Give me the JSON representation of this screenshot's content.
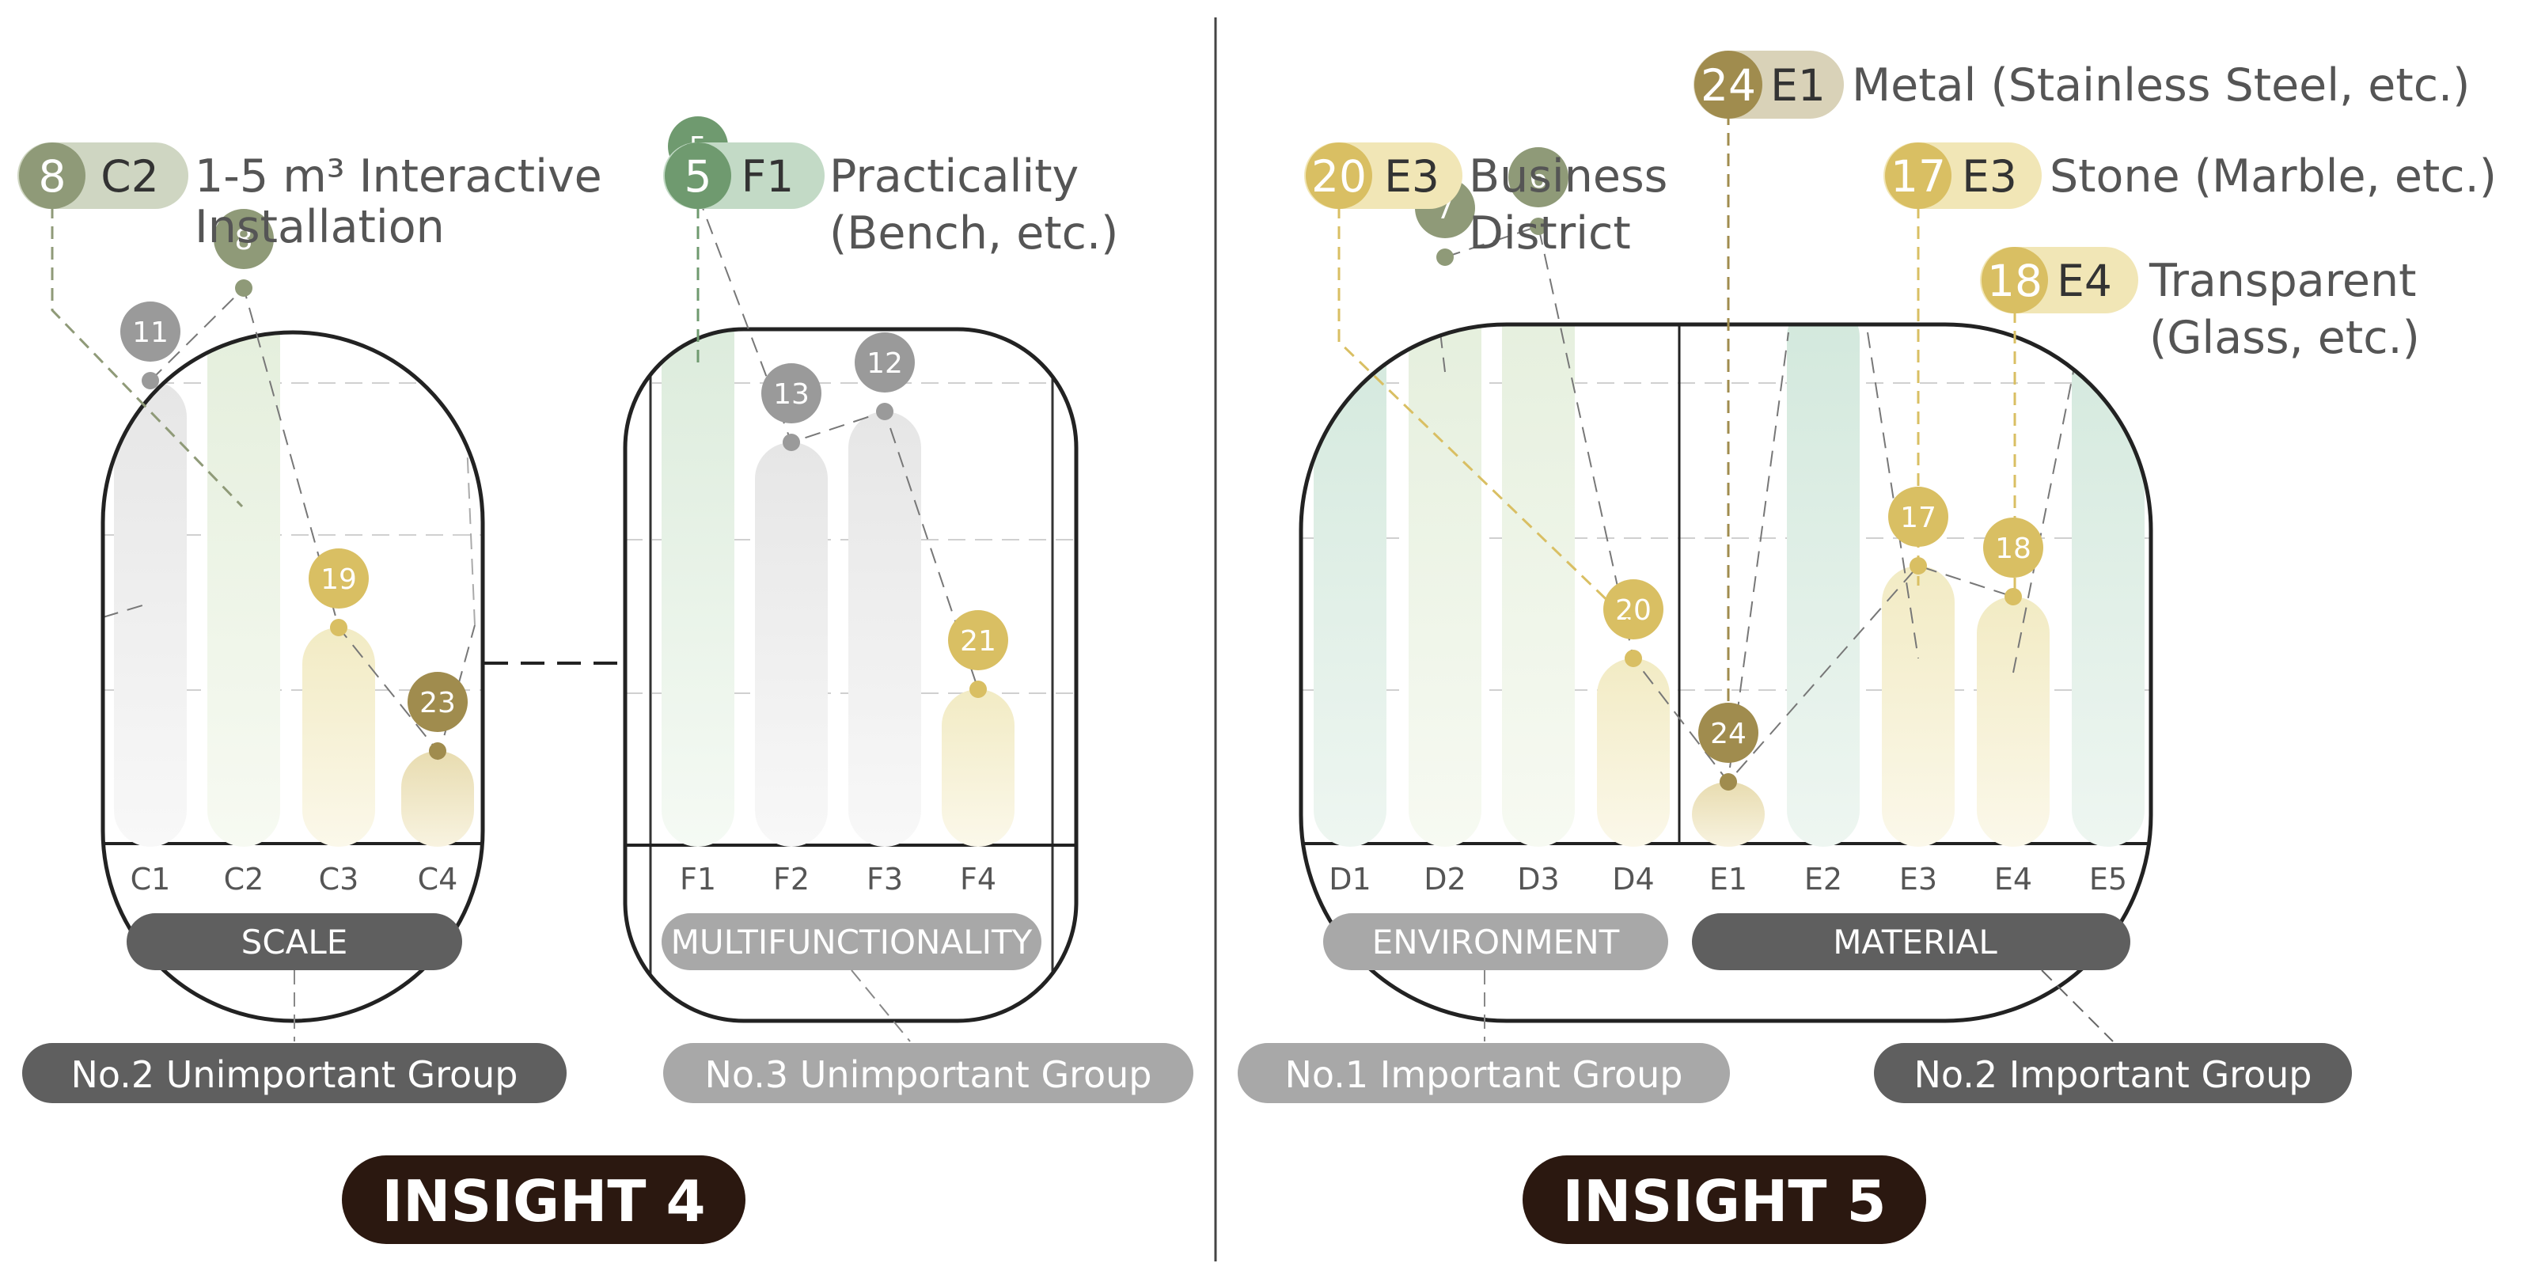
{
  "colors": {
    "gray": "#9a9a9a",
    "green": "#6f9a6f",
    "olive": "#8f9a78",
    "yellow": "#d9bf63",
    "gold": "#a08c4e",
    "dark_pill": "#5f5f5f",
    "light_pill": "#a8a8a8",
    "insight_bg": "#2b1810"
  },
  "callouts": {
    "c2": {
      "num": "8",
      "code": "C2",
      "label_line1": "1-5 m³ Interactive",
      "label_line2": "Installation"
    },
    "f1": {
      "num": "5",
      "code": "F1",
      "label_line1": "Practicality",
      "label_line2": "(Bench, etc.)"
    },
    "e1": {
      "num": "24",
      "code": "E1",
      "label_line1": "Metal (Stainless Steel, etc.)"
    },
    "e3a": {
      "num": "20",
      "code": "E3",
      "label_line1": "Business",
      "label_line2": "District"
    },
    "e3b": {
      "num": "17",
      "code": "E3",
      "label_line1": "Stone (Marble, etc.)"
    },
    "e4": {
      "num": "18",
      "code": "E4",
      "label_line1": "Transparent",
      "label_line2": "(Glass, etc.)"
    }
  },
  "chart_data": [
    {
      "type": "bar",
      "category": "SCALE",
      "group": "No.2 Unimportant Group",
      "categories": [
        "C1",
        "C2",
        "C3",
        "C4"
      ],
      "values": [
        11,
        8,
        19,
        23
      ],
      "ylim": [
        26,
        4
      ]
    },
    {
      "type": "bar",
      "category": "MULTIFUNCTIONALITY",
      "group": "No.3 Unimportant Group",
      "categories": [
        "F1",
        "F2",
        "F3",
        "F4"
      ],
      "values": [
        5,
        13,
        12,
        21
      ],
      "ylim": [
        26,
        4
      ]
    },
    {
      "type": "bar",
      "categories": [
        "D1",
        "D2",
        "D3",
        "D4",
        "E1",
        "E2",
        "E3",
        "E4",
        "E5"
      ],
      "values": [
        null,
        7,
        6,
        20,
        24,
        null,
        17,
        18,
        null
      ],
      "ylim": [
        26,
        4
      ],
      "groups": [
        {
          "category": "ENVIRONMENT",
          "group": "No.1 Important Group",
          "categories": [
            "D1",
            "D2",
            "D3",
            "D4"
          ]
        },
        {
          "category": "MATERIAL",
          "group": "No.2 Important Group",
          "categories": [
            "E1",
            "E2",
            "E3",
            "E4",
            "E5"
          ]
        }
      ]
    }
  ],
  "insights": [
    "INSIGHT 4",
    "INSIGHT 5"
  ]
}
